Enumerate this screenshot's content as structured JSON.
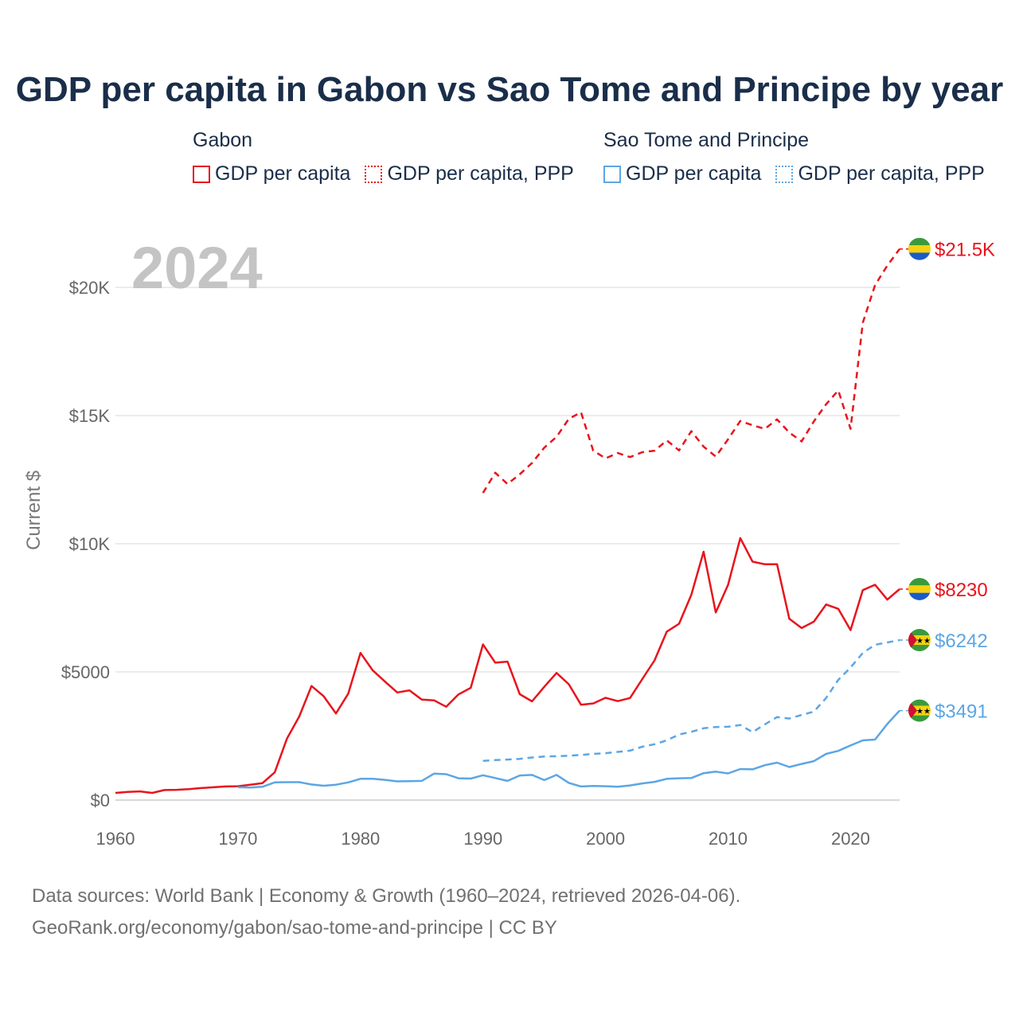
{
  "colors": {
    "gabon": "#e8141c",
    "stp": "#5ca6e4",
    "title": "#1a2e4a",
    "grid": "#e6e6e6"
  },
  "legend": {
    "groups": [
      {
        "title": "Gabon",
        "items": [
          {
            "label": "GDP per capita",
            "style": "solid",
            "color": "#e8141c"
          },
          {
            "label": "GDP per capita, PPP",
            "style": "dotted",
            "color": "#e8141c"
          }
        ]
      },
      {
        "title": "Sao Tome and Principe",
        "items": [
          {
            "label": "GDP per capita",
            "style": "solid",
            "color": "#5ca6e4"
          },
          {
            "label": "GDP per capita, PPP",
            "style": "dotted",
            "color": "#5ca6e4"
          }
        ]
      }
    ]
  },
  "chart_data": {
    "type": "line",
    "title": "GDP per capita in Gabon vs Sao Tome and Principe by year",
    "year_badge": "2024",
    "xlabel": "",
    "ylabel": "Current $",
    "xlim": [
      1960,
      2024
    ],
    "ylim": [
      0,
      22000
    ],
    "x_ticks": [
      1960,
      1970,
      1980,
      1990,
      2000,
      2010,
      2020
    ],
    "x_tick_labels": [
      "1960",
      "1970",
      "1980",
      "1990",
      "2000",
      "2010",
      "2020"
    ],
    "y_ticks": [
      0,
      5000,
      10000,
      15000,
      20000
    ],
    "y_tick_labels": [
      "$0",
      "$5000",
      "$10K",
      "$15K",
      "$20K"
    ],
    "grid": true,
    "series": [
      {
        "name": "Gabon GDP per capita",
        "color": "#e8141c",
        "dash": "solid",
        "start": 1960,
        "end_label": "$8230",
        "flag": "gabon",
        "values": [
          280,
          320,
          340,
          280,
          390,
          400,
          430,
          470,
          500,
          530,
          540,
          600,
          660,
          1080,
          2400,
          3260,
          4450,
          4050,
          3380,
          4150,
          5740,
          5060,
          4620,
          4200,
          4280,
          3920,
          3890,
          3640,
          4120,
          4380,
          6070,
          5360,
          5400,
          4130,
          3850,
          4420,
          4960,
          4520,
          3720,
          3770,
          3990,
          3860,
          3980,
          4720,
          5450,
          6570,
          6880,
          8010,
          9690,
          7320,
          8390,
          10220,
          9300,
          9200,
          9200,
          7070,
          6710,
          6960,
          7630,
          7460,
          6630,
          8190,
          8400,
          7820,
          8230
        ]
      },
      {
        "name": "Gabon GDP per capita, PPP",
        "color": "#e8141c",
        "dash": "dashed",
        "start": 1990,
        "end_label": "$21.5K",
        "flag": "gabon",
        "values": [
          11980,
          12770,
          12330,
          12710,
          13150,
          13750,
          14170,
          14870,
          15130,
          13630,
          13330,
          13540,
          13380,
          13570,
          13630,
          14030,
          13640,
          14390,
          13790,
          13400,
          14070,
          14790,
          14620,
          14480,
          14850,
          14340,
          13990,
          14770,
          15440,
          15980,
          14480,
          18620,
          20090,
          20850,
          21500
        ]
      },
      {
        "name": "Sao Tome and Principe GDP per capita",
        "color": "#5ca6e4",
        "dash": "solid",
        "start": 1970,
        "end_label": "$3491",
        "flag": "stp",
        "values": [
          500,
          490,
          520,
          690,
          700,
          700,
          610,
          560,
          600,
          690,
          830,
          830,
          790,
          730,
          740,
          750,
          1030,
          1010,
          850,
          840,
          970,
          860,
          750,
          960,
          980,
          780,
          980,
          670,
          530,
          550,
          540,
          520,
          570,
          650,
          710,
          830,
          850,
          860,
          1050,
          1110,
          1040,
          1210,
          1200,
          1360,
          1460,
          1290,
          1410,
          1520,
          1800,
          1920,
          2130,
          2330,
          2360,
          2970,
          3491
        ]
      },
      {
        "name": "Sao Tome and Principe GDP per capita, PPP",
        "color": "#5ca6e4",
        "dash": "dashed",
        "start": 1990,
        "end_label": "$6242",
        "flag": "stp",
        "values": [
          1530,
          1560,
          1580,
          1610,
          1660,
          1700,
          1710,
          1730,
          1760,
          1800,
          1830,
          1880,
          1930,
          2080,
          2180,
          2330,
          2560,
          2660,
          2800,
          2850,
          2860,
          2930,
          2650,
          2950,
          3240,
          3180,
          3320,
          3450,
          3980,
          4690,
          5170,
          5740,
          6060,
          6150,
          6242
        ]
      }
    ]
  },
  "footer": {
    "line1": "Data sources: World Bank | Economy & Growth (1960–2024, retrieved 2026-04-06).",
    "line2": "GeoRank.org/economy/gabon/sao-tome-and-principe | CC BY"
  }
}
